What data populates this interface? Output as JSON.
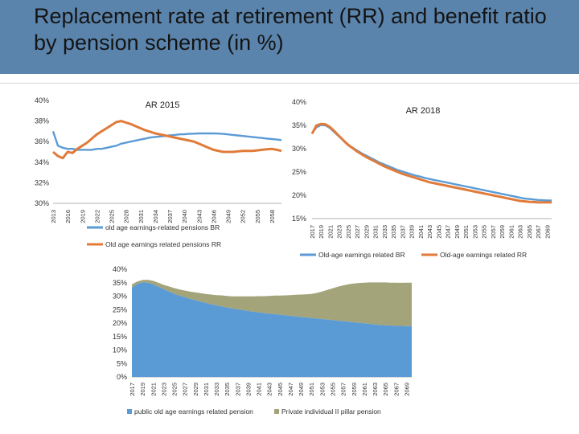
{
  "title": "Replacement rate at retirement (RR) and benefit ratio by pension scheme (in %)",
  "colors": {
    "header": "#5b84ac",
    "blue": "#5b9bd5",
    "orange": "#e07b39",
    "olive": "#a4a47a",
    "axis": "#b0b0b0",
    "text": "#333333"
  },
  "chart_data": [
    {
      "id": "ar2015",
      "type": "line",
      "title": "AR 2015",
      "y_tick_labels": [
        "30%",
        "32%",
        "34%",
        "36%",
        "38%",
        "40%"
      ],
      "ylim": [
        30,
        40
      ],
      "x": [
        2013,
        2014,
        2015,
        2016,
        2017,
        2018,
        2019,
        2020,
        2021,
        2022,
        2023,
        2024,
        2025,
        2026,
        2027,
        2028,
        2029,
        2030,
        2031,
        2032,
        2033,
        2034,
        2035,
        2036,
        2037,
        2038,
        2039,
        2040,
        2041,
        2042,
        2043,
        2044,
        2045,
        2046,
        2047,
        2048,
        2049,
        2050,
        2051,
        2052,
        2053,
        2054,
        2055,
        2056,
        2057,
        2058,
        2059,
        2060
      ],
      "x_tick_labels": [
        "2013",
        "2016",
        "2019",
        "2022",
        "2025",
        "2028",
        "2031",
        "2034",
        "2037",
        "2040",
        "2043",
        "2046",
        "2049",
        "2052",
        "2055",
        "2058"
      ],
      "series": [
        {
          "name": "old age earnings-related pensions BR",
          "color": "#5b9bd5",
          "values": [
            37.0,
            35.6,
            35.4,
            35.3,
            35.3,
            35.2,
            35.2,
            35.2,
            35.2,
            35.3,
            35.3,
            35.4,
            35.5,
            35.6,
            35.8,
            35.9,
            36.0,
            36.1,
            36.2,
            36.3,
            36.4,
            36.45,
            36.5,
            36.55,
            36.6,
            36.65,
            36.7,
            36.72,
            36.75,
            36.77,
            36.8,
            36.8,
            36.8,
            36.8,
            36.78,
            36.75,
            36.7,
            36.65,
            36.6,
            36.55,
            36.5,
            36.45,
            36.4,
            36.35,
            36.3,
            36.25,
            36.2,
            36.15
          ]
        },
        {
          "name": "Old age earnings related pensions RR",
          "color": "#e07b39",
          "values": [
            35.0,
            34.6,
            34.4,
            35.0,
            34.9,
            35.3,
            35.6,
            35.9,
            36.3,
            36.7,
            37.0,
            37.3,
            37.6,
            37.9,
            38.0,
            37.85,
            37.7,
            37.5,
            37.3,
            37.1,
            36.95,
            36.8,
            36.7,
            36.6,
            36.5,
            36.4,
            36.3,
            36.2,
            36.1,
            36.0,
            35.8,
            35.6,
            35.4,
            35.2,
            35.1,
            35.0,
            35.0,
            35.0,
            35.05,
            35.1,
            35.1,
            35.1,
            35.15,
            35.2,
            35.25,
            35.3,
            35.2,
            35.1
          ]
        }
      ]
    },
    {
      "id": "ar2018",
      "type": "line",
      "title": "AR 2018",
      "y_tick_labels": [
        "15%",
        "20%",
        "25%",
        "30%",
        "35%",
        "40%"
      ],
      "ylim": [
        15,
        40
      ],
      "x": [
        2017,
        2018,
        2019,
        2020,
        2021,
        2022,
        2023,
        2024,
        2025,
        2026,
        2027,
        2028,
        2029,
        2030,
        2031,
        2032,
        2033,
        2034,
        2035,
        2036,
        2037,
        2038,
        2039,
        2040,
        2041,
        2042,
        2043,
        2044,
        2045,
        2046,
        2047,
        2048,
        2049,
        2050,
        2051,
        2052,
        2053,
        2054,
        2055,
        2056,
        2057,
        2058,
        2059,
        2060,
        2061,
        2062,
        2063,
        2064,
        2065,
        2066,
        2067,
        2068,
        2069,
        2070
      ],
      "x_tick_labels": [
        "2017",
        "2019",
        "2021",
        "2023",
        "2025",
        "2027",
        "2029",
        "2031",
        "2033",
        "2035",
        "2037",
        "2039",
        "2041",
        "2043",
        "2045",
        "2047",
        "2049",
        "2051",
        "2053",
        "2055",
        "2057",
        "2059",
        "2061",
        "2063",
        "2065",
        "2067",
        "2069"
      ],
      "series": [
        {
          "name": "Old-age earnings related BR",
          "color": "#5b9bd5",
          "values": [
            33.3,
            34.6,
            35.1,
            35.0,
            34.4,
            33.5,
            32.6,
            31.7,
            30.9,
            30.2,
            29.6,
            29.0,
            28.5,
            28.0,
            27.5,
            27.0,
            26.6,
            26.2,
            25.8,
            25.4,
            25.1,
            24.8,
            24.5,
            24.2,
            24.0,
            23.7,
            23.5,
            23.3,
            23.1,
            22.9,
            22.7,
            22.5,
            22.3,
            22.1,
            21.9,
            21.7,
            21.5,
            21.3,
            21.1,
            20.9,
            20.7,
            20.5,
            20.3,
            20.1,
            19.9,
            19.7,
            19.5,
            19.3,
            19.2,
            19.1,
            19.0,
            18.95,
            18.9,
            18.9
          ]
        },
        {
          "name": "Old-age earnings related RR",
          "color": "#e07b39",
          "values": [
            33.2,
            35.0,
            35.3,
            35.2,
            34.6,
            33.7,
            32.7,
            31.7,
            30.8,
            30.1,
            29.4,
            28.8,
            28.2,
            27.7,
            27.2,
            26.7,
            26.2,
            25.8,
            25.4,
            25.0,
            24.6,
            24.3,
            24.0,
            23.7,
            23.4,
            23.1,
            22.8,
            22.6,
            22.4,
            22.2,
            22.0,
            21.8,
            21.6,
            21.4,
            21.2,
            21.0,
            20.8,
            20.6,
            20.4,
            20.2,
            20.0,
            19.8,
            19.6,
            19.4,
            19.2,
            19.0,
            18.8,
            18.7,
            18.6,
            18.55,
            18.5,
            18.5,
            18.5,
            18.5
          ]
        }
      ]
    },
    {
      "id": "benefit-ratio",
      "type": "area",
      "title": "",
      "y_tick_labels": [
        "0%",
        "5%",
        "10%",
        "15%",
        "20%",
        "25%",
        "30%",
        "35%",
        "40%"
      ],
      "ylim": [
        0,
        40
      ],
      "x": [
        2017,
        2018,
        2019,
        2020,
        2021,
        2022,
        2023,
        2024,
        2025,
        2026,
        2027,
        2028,
        2029,
        2030,
        2031,
        2032,
        2033,
        2034,
        2035,
        2036,
        2037,
        2038,
        2039,
        2040,
        2041,
        2042,
        2043,
        2044,
        2045,
        2046,
        2047,
        2048,
        2049,
        2050,
        2051,
        2052,
        2053,
        2054,
        2055,
        2056,
        2057,
        2058,
        2059,
        2060,
        2061,
        2062,
        2063,
        2064,
        2065,
        2066,
        2067,
        2068,
        2069,
        2070
      ],
      "x_tick_labels": [
        "2017",
        "2019",
        "2021",
        "2023",
        "2025",
        "2027",
        "2029",
        "2031",
        "2033",
        "2035",
        "2037",
        "2039",
        "2041",
        "2043",
        "2045",
        "2047",
        "2049",
        "2051",
        "2053",
        "2055",
        "2057",
        "2059",
        "2061",
        "2063",
        "2065",
        "2067",
        "2069"
      ],
      "series": [
        {
          "name": "public old age earnings related pension",
          "color": "#5b9bd5",
          "values": [
            33.0,
            34.6,
            35.1,
            35.0,
            34.4,
            33.5,
            32.6,
            31.7,
            30.9,
            30.2,
            29.6,
            29.0,
            28.5,
            28.0,
            27.5,
            27.0,
            26.6,
            26.2,
            25.8,
            25.4,
            25.1,
            24.8,
            24.5,
            24.2,
            24.0,
            23.7,
            23.5,
            23.3,
            23.1,
            22.9,
            22.7,
            22.5,
            22.3,
            22.1,
            21.9,
            21.7,
            21.5,
            21.3,
            21.1,
            20.9,
            20.7,
            20.5,
            20.3,
            20.1,
            19.9,
            19.7,
            19.5,
            19.3,
            19.2,
            19.1,
            19.0,
            18.95,
            18.9,
            18.9
          ]
        },
        {
          "name": "Private individual II pillar pension",
          "color": "#a4a47a",
          "values": [
            1.4,
            0.8,
            0.9,
            1.1,
            1.3,
            1.5,
            1.6,
            1.9,
            2.1,
            2.3,
            2.5,
            2.7,
            2.9,
            3.1,
            3.3,
            3.6,
            3.8,
            4.1,
            4.3,
            4.5,
            4.8,
            5.1,
            5.4,
            5.7,
            6.0,
            6.3,
            6.6,
            6.9,
            7.1,
            7.4,
            7.7,
            8.0,
            8.3,
            8.6,
            8.9,
            9.5,
            10.2,
            11.0,
            11.8,
            12.6,
            13.3,
            13.9,
            14.4,
            14.8,
            15.1,
            15.4,
            15.6,
            15.8,
            15.9,
            15.9,
            16.0,
            16.0,
            16.1,
            16.1
          ]
        }
      ]
    }
  ]
}
